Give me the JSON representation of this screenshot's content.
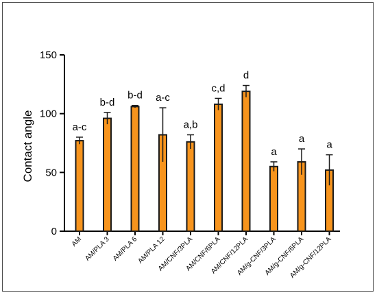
{
  "chart_data": {
    "type": "bar",
    "title": "",
    "xlabel": "",
    "ylabel": "Contact angle",
    "ylim": [
      0,
      150
    ],
    "yticks": [
      0,
      50,
      100,
      150
    ],
    "grid": false,
    "legend": "none",
    "categories": [
      "AM",
      "AM/PLA 3",
      "AM/PLA 6",
      "AM/PLA 12",
      "AM/CNF/3PLA",
      "AM/CNF/6PLA",
      "AM/CNF/12PLA",
      "AM/g-CNF/3PLA",
      "AM/g-CNF/6PLA",
      "AM/g-CNF/12PLA"
    ],
    "series": [
      {
        "values": [
          77,
          96,
          106,
          82,
          76,
          108,
          119,
          55,
          59,
          52
        ],
        "error": [
          3,
          5,
          1,
          23,
          6,
          5,
          5,
          4,
          11,
          13
        ],
        "color": "#f7941d"
      }
    ],
    "annotations": [
      "a-c",
      "b-d",
      "b-d",
      "a-c",
      "a,b",
      "c,d",
      "d",
      "a",
      "a",
      "a"
    ]
  }
}
